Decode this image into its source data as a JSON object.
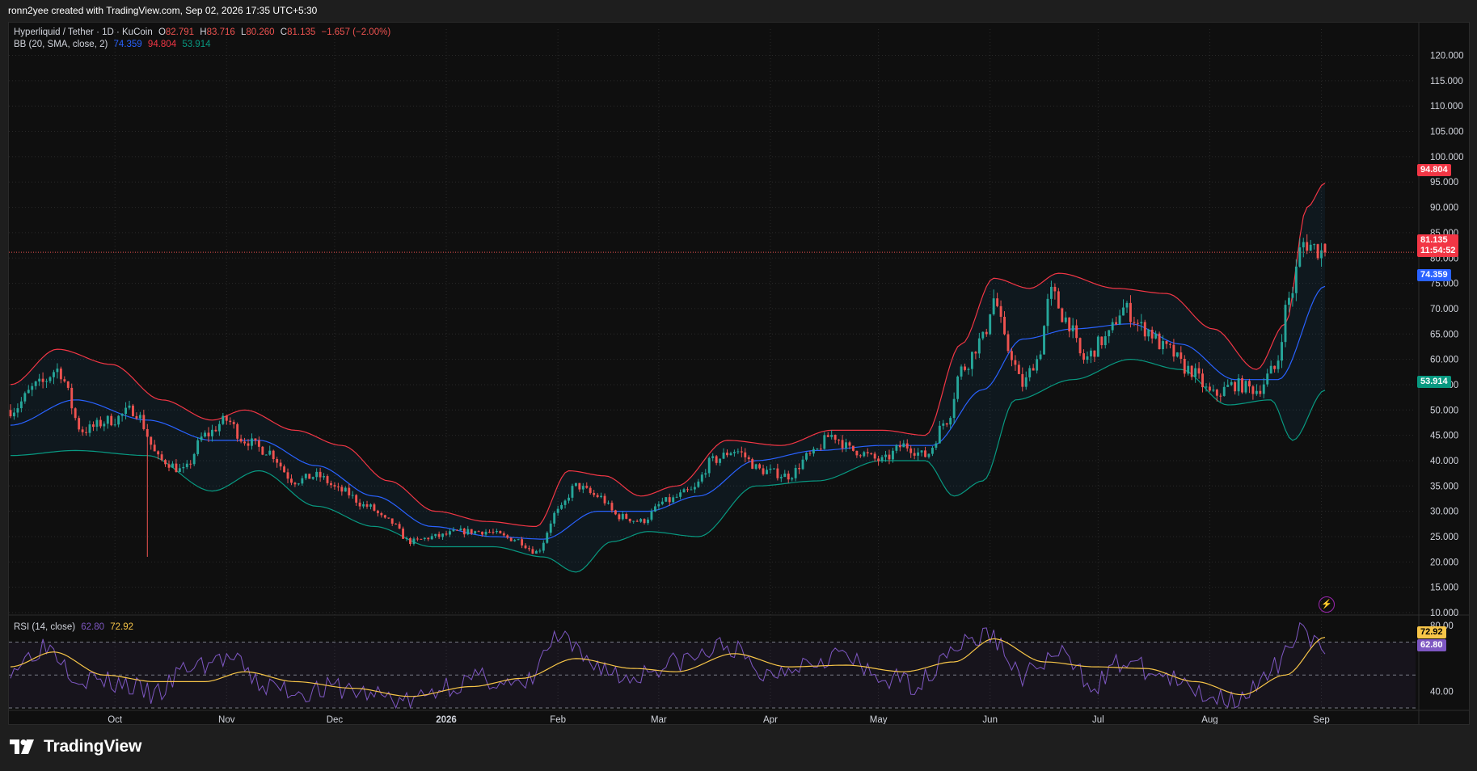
{
  "header": {
    "credit": "ronn2yee created with TradingView.com, Sep 02, 2026 17:35 UTC+5:30"
  },
  "legend": {
    "symbol": "Hyperliquid / Tether · 1D · KuCoin",
    "o_label": "O",
    "o_value": "82.791",
    "h_label": "H",
    "h_value": "83.716",
    "l_label": "L",
    "l_value": "80.260",
    "c_label": "C",
    "c_value": "81.135",
    "change": "−1.657 (−2.00%)",
    "bb_label": "BB (20, SMA, close, 2)",
    "bb_basis": "74.359",
    "bb_upper": "94.804",
    "bb_lower": "53.914"
  },
  "rsi_legend": {
    "label": "RSI (14, close)",
    "rsi": "62.80",
    "rsi_ma": "72.92"
  },
  "price_tags": {
    "upper": "94.804",
    "last": "81.135",
    "countdown": "11:54:52",
    "basis": "74.359",
    "lower": "53.914",
    "rsi_ma": "72.92",
    "rsi": "62.80"
  },
  "footer": {
    "brand": "TradingView"
  },
  "colors": {
    "up": "#26a69a",
    "down": "#ef5350",
    "basis": "#2962ff",
    "upper": "#f23645",
    "lower": "#089981",
    "rsi": "#7e57c2",
    "rsi_ma": "#f7c548"
  },
  "chart_data": {
    "type": "candlestick",
    "title": "Hyperliquid / Tether · 1D · KuCoin",
    "ylim": [
      10,
      122
    ],
    "y_ticks": [
      "120.000",
      "115.000",
      "110.000",
      "105.000",
      "100.000",
      "95.000",
      "90.000",
      "85.000",
      "80.000",
      "75.000",
      "70.000",
      "65.000",
      "60.000",
      "55.000",
      "50.000",
      "45.000",
      "40.000",
      "35.000",
      "30.000",
      "25.000",
      "20.000",
      "15.000",
      "10.000"
    ],
    "x_ticks": [
      "Oct",
      "Nov",
      "Dec",
      "2026",
      "Feb",
      "Mar",
      "Apr",
      "May",
      "Jun",
      "Jul",
      "Aug",
      "Sep"
    ],
    "price_keypoints": [
      [
        "2025-09-02",
        50
      ],
      [
        "2025-09-10",
        55
      ],
      [
        "2025-09-15",
        58
      ],
      [
        "2025-09-22",
        46
      ],
      [
        "2025-09-30",
        48
      ],
      [
        "2025-10-06",
        50
      ],
      [
        "2025-10-14",
        40
      ],
      [
        "2025-10-20",
        38
      ],
      [
        "2025-10-26",
        45
      ],
      [
        "2025-11-01",
        48
      ],
      [
        "2025-11-06",
        44
      ],
      [
        "2025-11-12",
        42
      ],
      [
        "2025-11-20",
        36
      ],
      [
        "2025-11-26",
        37
      ],
      [
        "2025-12-03",
        34
      ],
      [
        "2025-12-10",
        31
      ],
      [
        "2025-12-16",
        28
      ],
      [
        "2025-12-22",
        24
      ],
      [
        "2025-12-29",
        25
      ],
      [
        "2026-01-05",
        26
      ],
      [
        "2026-01-12",
        26
      ],
      [
        "2026-01-20",
        24.5
      ],
      [
        "2026-01-26",
        22
      ],
      [
        "2026-02-01",
        30
      ],
      [
        "2026-02-06",
        35
      ],
      [
        "2026-02-12",
        33
      ],
      [
        "2026-02-18",
        29
      ],
      [
        "2026-02-24",
        28
      ],
      [
        "2026-03-03",
        32
      ],
      [
        "2026-03-10",
        34
      ],
      [
        "2026-03-16",
        40
      ],
      [
        "2026-03-22",
        42
      ],
      [
        "2026-03-30",
        38
      ],
      [
        "2026-04-06",
        37
      ],
      [
        "2026-04-12",
        41
      ],
      [
        "2026-04-18",
        45
      ],
      [
        "2026-04-24",
        42
      ],
      [
        "2026-05-02",
        40
      ],
      [
        "2026-05-08",
        43
      ],
      [
        "2026-05-14",
        41
      ],
      [
        "2026-05-20",
        48
      ],
      [
        "2026-05-24",
        58
      ],
      [
        "2026-05-30",
        64
      ],
      [
        "2026-06-02",
        72
      ],
      [
        "2026-06-06",
        62
      ],
      [
        "2026-06-10",
        55
      ],
      [
        "2026-06-14",
        60
      ],
      [
        "2026-06-18",
        73
      ],
      [
        "2026-06-22",
        68
      ],
      [
        "2026-06-27",
        60
      ],
      [
        "2026-07-03",
        64
      ],
      [
        "2026-07-08",
        70
      ],
      [
        "2026-07-14",
        66
      ],
      [
        "2026-07-20",
        62
      ],
      [
        "2026-07-26",
        58
      ],
      [
        "2026-08-02",
        53
      ],
      [
        "2026-08-08",
        55
      ],
      [
        "2026-08-14",
        54
      ],
      [
        "2026-08-19",
        58
      ],
      [
        "2026-08-23",
        72
      ],
      [
        "2026-08-27",
        83
      ],
      [
        "2026-09-02",
        81.1
      ]
    ],
    "bollinger": {
      "upper_keypoints": [
        [
          "2025-09-02",
          55
        ],
        [
          "2025-09-15",
          62
        ],
        [
          "2025-09-30",
          59
        ],
        [
          "2025-10-14",
          52
        ],
        [
          "2025-10-28",
          48
        ],
        [
          "2025-11-06",
          50
        ],
        [
          "2025-11-20",
          46
        ],
        [
          "2025-12-03",
          43
        ],
        [
          "2025-12-16",
          36
        ],
        [
          "2025-12-29",
          30
        ],
        [
          "2026-01-12",
          28
        ],
        [
          "2026-01-26",
          27
        ],
        [
          "2026-02-04",
          38
        ],
        [
          "2026-02-14",
          37
        ],
        [
          "2026-02-24",
          33
        ],
        [
          "2026-03-06",
          35
        ],
        [
          "2026-03-20",
          44
        ],
        [
          "2026-04-04",
          43
        ],
        [
          "2026-04-18",
          46
        ],
        [
          "2026-05-02",
          46
        ],
        [
          "2026-05-14",
          45
        ],
        [
          "2026-05-24",
          63
        ],
        [
          "2026-06-02",
          76
        ],
        [
          "2026-06-12",
          74
        ],
        [
          "2026-06-20",
          77
        ],
        [
          "2026-07-06",
          74
        ],
        [
          "2026-07-20",
          73
        ],
        [
          "2026-08-02",
          66
        ],
        [
          "2026-08-14",
          58
        ],
        [
          "2026-08-22",
          67
        ],
        [
          "2026-08-28",
          90
        ],
        [
          "2026-09-02",
          94.8
        ]
      ],
      "basis_keypoints": [
        [
          "2025-09-02",
          47
        ],
        [
          "2025-09-20",
          52
        ],
        [
          "2025-10-10",
          48
        ],
        [
          "2025-10-28",
          44
        ],
        [
          "2025-11-10",
          44
        ],
        [
          "2025-11-26",
          39
        ],
        [
          "2025-12-12",
          33
        ],
        [
          "2025-12-28",
          27
        ],
        [
          "2026-01-14",
          25
        ],
        [
          "2026-01-28",
          24.5
        ],
        [
          "2026-02-12",
          30
        ],
        [
          "2026-02-26",
          30
        ],
        [
          "2026-03-12",
          33
        ],
        [
          "2026-03-28",
          40
        ],
        [
          "2026-04-14",
          42
        ],
        [
          "2026-05-02",
          43
        ],
        [
          "2026-05-16",
          43
        ],
        [
          "2026-05-30",
          54
        ],
        [
          "2026-06-10",
          64
        ],
        [
          "2026-06-24",
          66
        ],
        [
          "2026-07-10",
          67
        ],
        [
          "2026-07-24",
          63
        ],
        [
          "2026-08-08",
          56
        ],
        [
          "2026-08-20",
          56
        ],
        [
          "2026-09-02",
          74.4
        ]
      ],
      "lower_keypoints": [
        [
          "2025-09-02",
          41
        ],
        [
          "2025-09-20",
          42
        ],
        [
          "2025-10-10",
          41
        ],
        [
          "2025-10-28",
          34
        ],
        [
          "2025-11-10",
          38
        ],
        [
          "2025-11-26",
          31
        ],
        [
          "2025-12-12",
          27
        ],
        [
          "2025-12-28",
          23
        ],
        [
          "2026-01-14",
          23
        ],
        [
          "2026-01-28",
          21
        ],
        [
          "2026-02-06",
          18
        ],
        [
          "2026-02-16",
          24
        ],
        [
          "2026-02-26",
          26
        ],
        [
          "2026-03-12",
          25
        ],
        [
          "2026-03-28",
          35
        ],
        [
          "2026-04-14",
          36
        ],
        [
          "2026-05-02",
          40
        ],
        [
          "2026-05-14",
          40
        ],
        [
          "2026-05-22",
          33
        ],
        [
          "2026-05-30",
          36
        ],
        [
          "2026-06-08",
          52
        ],
        [
          "2026-06-24",
          56
        ],
        [
          "2026-07-10",
          60
        ],
        [
          "2026-07-24",
          58
        ],
        [
          "2026-08-06",
          51
        ],
        [
          "2026-08-18",
          52
        ],
        [
          "2026-08-24",
          44
        ],
        [
          "2026-09-02",
          53.9
        ]
      ]
    },
    "rsi": {
      "ylim": [
        30,
        84
      ],
      "y_ticks": [
        "80.00",
        "40.00"
      ],
      "bands": [
        70,
        50,
        30
      ],
      "rsi_keypoints": [
        [
          "2025-09-02",
          55
        ],
        [
          "2025-09-12",
          68
        ],
        [
          "2025-09-22",
          48
        ],
        [
          "2025-10-02",
          45
        ],
        [
          "2025-10-12",
          38
        ],
        [
          "2025-10-22",
          55
        ],
        [
          "2025-11-01",
          60
        ],
        [
          "2025-11-12",
          43
        ],
        [
          "2025-11-22",
          40
        ],
        [
          "2025-12-02",
          42
        ],
        [
          "2025-12-12",
          38
        ],
        [
          "2025-12-22",
          34
        ],
        [
          "2026-01-02",
          44
        ],
        [
          "2026-01-12",
          48
        ],
        [
          "2026-01-22",
          42
        ],
        [
          "2026-02-01",
          72
        ],
        [
          "2026-02-10",
          58
        ],
        [
          "2026-02-20",
          48
        ],
        [
          "2026-03-01",
          55
        ],
        [
          "2026-03-10",
          60
        ],
        [
          "2026-03-20",
          68
        ],
        [
          "2026-03-30",
          50
        ],
        [
          "2026-04-10",
          58
        ],
        [
          "2026-04-20",
          63
        ],
        [
          "2026-05-01",
          48
        ],
        [
          "2026-05-12",
          45
        ],
        [
          "2026-05-22",
          68
        ],
        [
          "2026-06-01",
          74
        ],
        [
          "2026-06-10",
          50
        ],
        [
          "2026-06-20",
          62
        ],
        [
          "2026-06-30",
          45
        ],
        [
          "2026-07-08",
          58
        ],
        [
          "2026-07-18",
          50
        ],
        [
          "2026-07-28",
          40
        ],
        [
          "2026-08-06",
          36
        ],
        [
          "2026-08-14",
          42
        ],
        [
          "2026-08-20",
          55
        ],
        [
          "2026-08-26",
          80
        ],
        [
          "2026-09-02",
          62.8
        ]
      ],
      "rsi_ma_keypoints": [
        [
          "2025-09-02",
          55
        ],
        [
          "2025-09-14",
          64
        ],
        [
          "2025-09-28",
          50
        ],
        [
          "2025-10-12",
          46
        ],
        [
          "2025-10-26",
          46
        ],
        [
          "2025-11-06",
          52
        ],
        [
          "2025-11-20",
          46
        ],
        [
          "2025-12-06",
          42
        ],
        [
          "2025-12-22",
          37
        ],
        [
          "2026-01-08",
          43
        ],
        [
          "2026-01-22",
          48
        ],
        [
          "2026-02-06",
          60
        ],
        [
          "2026-02-22",
          54
        ],
        [
          "2026-03-06",
          52
        ],
        [
          "2026-03-22",
          63
        ],
        [
          "2026-04-06",
          55
        ],
        [
          "2026-04-22",
          56
        ],
        [
          "2026-05-08",
          52
        ],
        [
          "2026-05-22",
          58
        ],
        [
          "2026-06-02",
          72
        ],
        [
          "2026-06-16",
          58
        ],
        [
          "2026-06-30",
          55
        ],
        [
          "2026-07-14",
          54
        ],
        [
          "2026-07-28",
          46
        ],
        [
          "2026-08-10",
          38
        ],
        [
          "2026-08-22",
          50
        ],
        [
          "2026-09-02",
          72.9
        ]
      ]
    }
  }
}
